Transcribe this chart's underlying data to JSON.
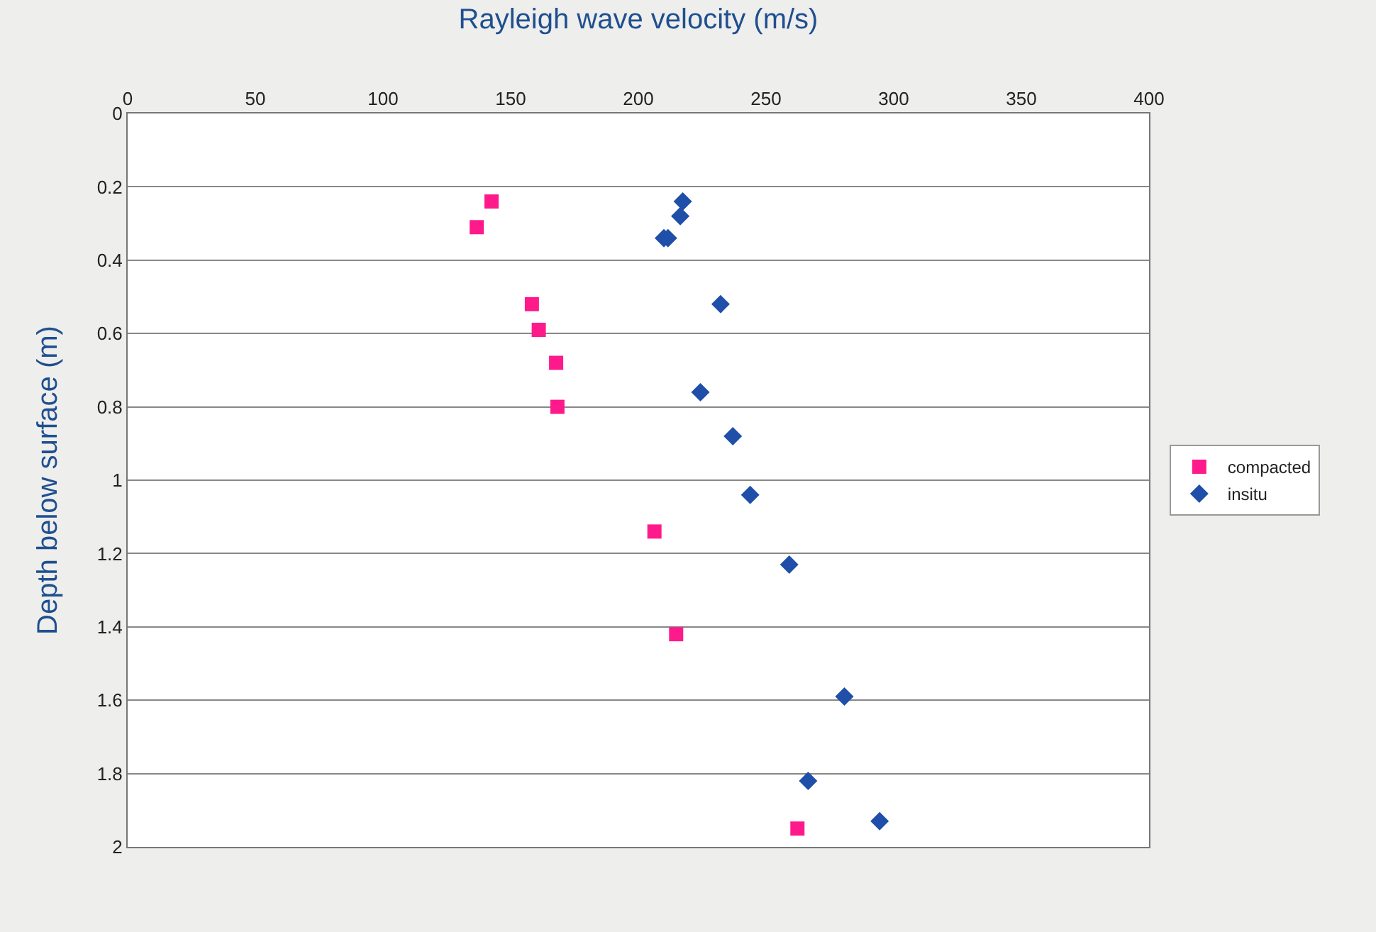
{
  "chart_data": {
    "type": "scatter",
    "xlabel": "Rayleigh wave velocity (m/s)",
    "ylabel": "Depth below surface (m)",
    "xlim": [
      0,
      400
    ],
    "xticks": [
      0,
      50,
      100,
      150,
      200,
      250,
      300,
      350,
      400
    ],
    "ylim": [
      2,
      0
    ],
    "yticks": [
      0,
      0.2,
      0.4,
      0.6,
      0.8,
      1,
      1.2,
      1.4,
      1.6,
      1.8,
      2
    ],
    "grid": "y",
    "legend": "right",
    "series": [
      {
        "name": "compacted",
        "color": "#ff1a8c",
        "marker": "square",
        "x": [
          142.5,
          136.7,
          158.3,
          161,
          167.8,
          168.3,
          206.3,
          214.8,
          262.3
        ],
        "values": [
          0.24,
          0.31,
          0.52,
          0.59,
          0.68,
          0.8,
          1.14,
          1.42,
          1.95
        ]
      },
      {
        "name": "insitu",
        "color": "#1f4fa8",
        "marker": "diamond",
        "x": [
          217.4,
          216.4,
          210,
          211.6,
          232.2,
          224.3,
          237,
          243.8,
          259.1,
          280.7,
          266.5,
          294.5
        ],
        "values": [
          0.24,
          0.28,
          0.34,
          0.34,
          0.52,
          0.76,
          0.88,
          1.04,
          1.23,
          1.59,
          1.82,
          1.93
        ]
      }
    ]
  }
}
